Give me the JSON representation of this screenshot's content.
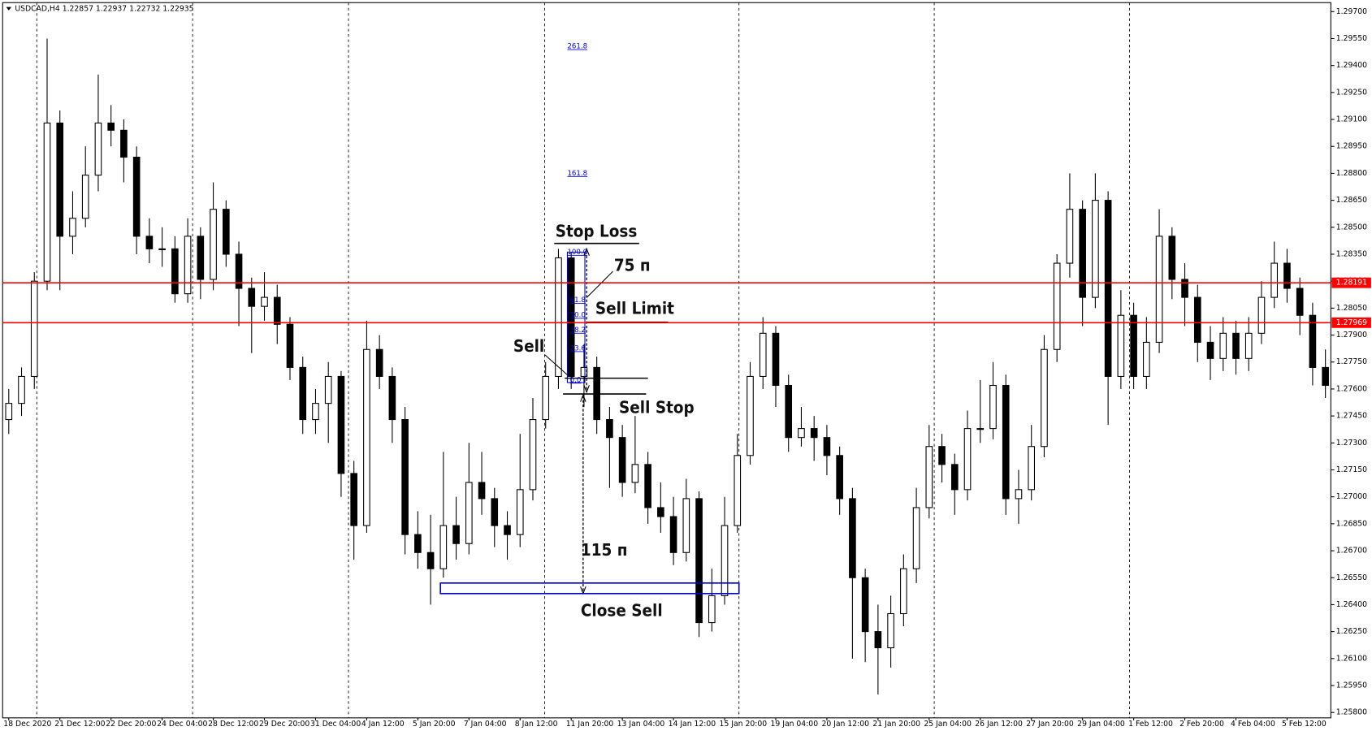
{
  "chart_data": {
    "type": "candlestick",
    "title": "USDCAD,H4  1.22857 1.22937 1.22732 1.22935",
    "categories": [
      "18 Dec 2020",
      null,
      null,
      null,
      "21 Dec 12:00",
      null,
      null,
      null,
      "22 Dec 20:00",
      null,
      null,
      null,
      "24 Dec 04:00",
      null,
      null,
      null,
      "28 Dec 12:00",
      null,
      null,
      null,
      "29 Dec 20:00",
      null,
      null,
      null,
      "31 Dec 04:00",
      null,
      null,
      null,
      "4 Jan 12:00",
      null,
      null,
      null,
      "5 Jan 20:00",
      null,
      null,
      null,
      "7 Jan 04:00",
      null,
      null,
      null,
      "8 Jan 12:00",
      null,
      null,
      null,
      "11 Jan 20:00",
      null,
      null,
      null,
      "13 Jan 04:00",
      null,
      null,
      null,
      "14 Jan 12:00",
      null,
      null,
      null,
      "15 Jan 20:00",
      null,
      null,
      null,
      "19 Jan 04:00",
      null,
      null,
      null,
      "20 Jan 12:00",
      null,
      null,
      null,
      "21 Jan 20:00",
      null,
      null,
      null,
      "25 Jan 04:00",
      null,
      null,
      null,
      "26 Jan 12:00",
      null,
      null,
      null,
      "27 Jan 20:00",
      null,
      null,
      null,
      "29 Jan 04:00",
      null,
      null,
      null,
      "1 Feb 12:00",
      null,
      null,
      null,
      "2 Feb 20:00",
      null,
      null,
      null,
      "4 Feb 04:00",
      null,
      null,
      null,
      "5 Feb 12:00",
      null,
      null,
      null
    ],
    "ohlc": [
      [
        1.2743,
        1.276,
        1.2735,
        1.2752
      ],
      [
        1.2752,
        1.2772,
        1.2745,
        1.2767
      ],
      [
        1.2767,
        1.2825,
        1.276,
        1.282
      ],
      [
        1.282,
        1.2955,
        1.2815,
        1.2908
      ],
      [
        1.2908,
        1.2915,
        1.2815,
        1.2845
      ],
      [
        1.2845,
        1.287,
        1.2835,
        1.2855
      ],
      [
        1.2855,
        1.2895,
        1.285,
        1.2879
      ],
      [
        1.2879,
        1.2935,
        1.287,
        1.2908
      ],
      [
        1.2908,
        1.2918,
        1.2895,
        1.2904
      ],
      [
        1.2904,
        1.291,
        1.2875,
        1.2889
      ],
      [
        1.2889,
        1.2895,
        1.2835,
        1.2845
      ],
      [
        1.2845,
        1.2855,
        1.283,
        1.2838
      ],
      [
        1.2838,
        1.285,
        1.2828,
        1.2838
      ],
      [
        1.2838,
        1.2845,
        1.2808,
        1.2813
      ],
      [
        1.2813,
        1.2855,
        1.2808,
        1.2845
      ],
      [
        1.2845,
        1.285,
        1.281,
        1.2821
      ],
      [
        1.2821,
        1.2875,
        1.2815,
        1.286
      ],
      [
        1.286,
        1.2865,
        1.2828,
        1.2835
      ],
      [
        1.2835,
        1.2842,
        1.2795,
        1.2816
      ],
      [
        1.2816,
        1.2822,
        1.278,
        1.2806
      ],
      [
        1.2806,
        1.2825,
        1.2798,
        1.2811
      ],
      [
        1.2811,
        1.2818,
        1.2785,
        1.2796
      ],
      [
        1.2796,
        1.28,
        1.2765,
        1.2772
      ],
      [
        1.2772,
        1.2778,
        1.2735,
        1.2743
      ],
      [
        1.2743,
        1.276,
        1.2735,
        1.2752
      ],
      [
        1.2752,
        1.2775,
        1.273,
        1.2767
      ],
      [
        1.2767,
        1.277,
        1.27,
        1.2713
      ],
      [
        1.2713,
        1.272,
        1.2665,
        1.2684
      ],
      [
        1.2684,
        1.2798,
        1.268,
        1.2782
      ],
      [
        1.2782,
        1.279,
        1.276,
        1.2767
      ],
      [
        1.2767,
        1.2772,
        1.273,
        1.2743
      ],
      [
        1.2743,
        1.275,
        1.2668,
        1.2679
      ],
      [
        1.2679,
        1.2692,
        1.266,
        1.2669
      ],
      [
        1.2669,
        1.269,
        1.264,
        1.266
      ],
      [
        1.266,
        1.2725,
        1.2655,
        1.2684
      ],
      [
        1.2684,
        1.27,
        1.2665,
        1.2674
      ],
      [
        1.2674,
        1.273,
        1.2668,
        1.2708
      ],
      [
        1.2708,
        1.2725,
        1.269,
        1.2699
      ],
      [
        1.2699,
        1.2705,
        1.2672,
        1.2684
      ],
      [
        1.2684,
        1.2692,
        1.2665,
        1.2679
      ],
      [
        1.2679,
        1.2735,
        1.2672,
        1.2704
      ],
      [
        1.2704,
        1.2755,
        1.2698,
        1.2743
      ],
      [
        1.2743,
        1.2775,
        1.2738,
        1.2767
      ],
      [
        1.2767,
        1.2838,
        1.276,
        1.2833
      ],
      [
        1.2833,
        1.2836,
        1.276,
        1.2767
      ],
      [
        1.2767,
        1.2785,
        1.275,
        1.2772
      ],
      [
        1.2772,
        1.2778,
        1.2735,
        1.2743
      ],
      [
        1.2743,
        1.275,
        1.2705,
        1.2733
      ],
      [
        1.2733,
        1.274,
        1.27,
        1.2708
      ],
      [
        1.2708,
        1.2745,
        1.2702,
        1.2718
      ],
      [
        1.2718,
        1.2725,
        1.2685,
        1.2694
      ],
      [
        1.2694,
        1.2708,
        1.268,
        1.2689
      ],
      [
        1.2689,
        1.27,
        1.2662,
        1.2669
      ],
      [
        1.2669,
        1.271,
        1.2664,
        1.2699
      ],
      [
        1.2699,
        1.2703,
        1.2622,
        1.263
      ],
      [
        1.263,
        1.266,
        1.2625,
        1.2645
      ],
      [
        1.2645,
        1.27,
        1.264,
        1.2684
      ],
      [
        1.2684,
        1.2735,
        1.268,
        1.2723
      ],
      [
        1.2723,
        1.2775,
        1.2718,
        1.2767
      ],
      [
        1.2767,
        1.28,
        1.276,
        1.2791
      ],
      [
        1.2791,
        1.2795,
        1.275,
        1.2762
      ],
      [
        1.2762,
        1.2768,
        1.2725,
        1.2733
      ],
      [
        1.2733,
        1.275,
        1.2728,
        1.2738
      ],
      [
        1.2738,
        1.2745,
        1.272,
        1.2733
      ],
      [
        1.2733,
        1.274,
        1.2712,
        1.2723
      ],
      [
        1.2723,
        1.2728,
        1.269,
        1.2699
      ],
      [
        1.2699,
        1.2705,
        1.261,
        1.2655
      ],
      [
        1.2655,
        1.266,
        1.2608,
        1.2625
      ],
      [
        1.2625,
        1.264,
        1.259,
        1.2616
      ],
      [
        1.2616,
        1.2645,
        1.2605,
        1.2635
      ],
      [
        1.2635,
        1.2668,
        1.2628,
        1.266
      ],
      [
        1.266,
        1.2705,
        1.2652,
        1.2694
      ],
      [
        1.2694,
        1.274,
        1.2688,
        1.2728
      ],
      [
        1.2728,
        1.2735,
        1.2708,
        1.2718
      ],
      [
        1.2718,
        1.2724,
        1.269,
        1.2704
      ],
      [
        1.2704,
        1.2748,
        1.2698,
        1.2738
      ],
      [
        1.2738,
        1.2765,
        1.273,
        1.2738
      ],
      [
        1.2738,
        1.2775,
        1.2732,
        1.2762
      ],
      [
        1.2762,
        1.2768,
        1.269,
        1.2699
      ],
      [
        1.2699,
        1.2715,
        1.2685,
        1.2704
      ],
      [
        1.2704,
        1.274,
        1.2698,
        1.2728
      ],
      [
        1.2728,
        1.279,
        1.2722,
        1.2782
      ],
      [
        1.2782,
        1.2835,
        1.2775,
        1.283
      ],
      [
        1.283,
        1.288,
        1.2822,
        1.286
      ],
      [
        1.286,
        1.2865,
        1.2795,
        1.2811
      ],
      [
        1.2811,
        1.288,
        1.2805,
        1.2865
      ],
      [
        1.2865,
        1.287,
        1.274,
        1.2767
      ],
      [
        1.2767,
        1.2815,
        1.276,
        1.2801
      ],
      [
        1.2801,
        1.2808,
        1.276,
        1.2767
      ],
      [
        1.2767,
        1.28,
        1.276,
        1.2786
      ],
      [
        1.2786,
        1.286,
        1.278,
        1.2845
      ],
      [
        1.2845,
        1.285,
        1.281,
        1.2821
      ],
      [
        1.2821,
        1.283,
        1.2795,
        1.2811
      ],
      [
        1.2811,
        1.2818,
        1.2775,
        1.2786
      ],
      [
        1.2786,
        1.2795,
        1.2765,
        1.2777
      ],
      [
        1.2777,
        1.28,
        1.277,
        1.2791
      ],
      [
        1.2791,
        1.2798,
        1.2768,
        1.2777
      ],
      [
        1.2777,
        1.28,
        1.277,
        1.2791
      ],
      [
        1.2791,
        1.282,
        1.2785,
        1.2811
      ],
      [
        1.2811,
        1.2842,
        1.2805,
        1.283
      ],
      [
        1.283,
        1.2838,
        1.2808,
        1.2816
      ],
      [
        1.2816,
        1.2822,
        1.279,
        1.2801
      ],
      [
        1.2801,
        1.2808,
        1.2762,
        1.2772
      ],
      [
        1.2772,
        1.2782,
        1.2755,
        1.2762
      ]
    ],
    "up_color": "#ffffff",
    "down_color": "#000000",
    "outline_color": "#000000",
    "ylim": [
      1.2577,
      1.2975
    ],
    "yticks": [
      {
        "value": 1.297,
        "label": "1.29700"
      },
      {
        "value": 1.2955,
        "label": "1.29550"
      },
      {
        "value": 1.294,
        "label": "1.29400"
      },
      {
        "value": 1.2925,
        "label": "1.29250"
      },
      {
        "value": 1.291,
        "label": "1.29100"
      },
      {
        "value": 1.2895,
        "label": "1.28950"
      },
      {
        "value": 1.288,
        "label": "1.28800"
      },
      {
        "value": 1.2865,
        "label": "1.28650"
      },
      {
        "value": 1.285,
        "label": "1.28500"
      },
      {
        "value": 1.2835,
        "label": "1.28350"
      },
      {
        "value": 1.282,
        "label": "1.28200"
      },
      {
        "value": 1.2805,
        "label": "1.28050"
      },
      {
        "value": 1.279,
        "label": "1.27900"
      },
      {
        "value": 1.2775,
        "label": "1.27750"
      },
      {
        "value": 1.276,
        "label": "1.27600"
      },
      {
        "value": 1.2745,
        "label": "1.27450"
      },
      {
        "value": 1.273,
        "label": "1.27300"
      },
      {
        "value": 1.2715,
        "label": "1.27150"
      },
      {
        "value": 1.27,
        "label": "1.27000"
      },
      {
        "value": 1.2685,
        "label": "1.26850"
      },
      {
        "value": 1.267,
        "label": "1.26700"
      },
      {
        "value": 1.2655,
        "label": "1.26550"
      },
      {
        "value": 1.264,
        "label": "1.26400"
      },
      {
        "value": 1.2625,
        "label": "1.26250"
      },
      {
        "value": 1.261,
        "label": "1.26100"
      },
      {
        "value": 1.2595,
        "label": "1.25950"
      },
      {
        "value": 1.258,
        "label": "1.25800"
      }
    ],
    "hlines": [
      1.28191,
      1.27969
    ],
    "hline_color": "#ff0000",
    "grid": false
  },
  "annotations": {
    "fib_levels": [
      "261.8",
      "161.8",
      "100.0",
      "61.8",
      "50.0",
      "38.2",
      "23.6",
      "0.0"
    ],
    "labels": [
      "Stop Loss",
      "75 п",
      "Sell Limit",
      "Sell",
      "Sell Stop",
      "115 п",
      "Close Sell"
    ]
  }
}
